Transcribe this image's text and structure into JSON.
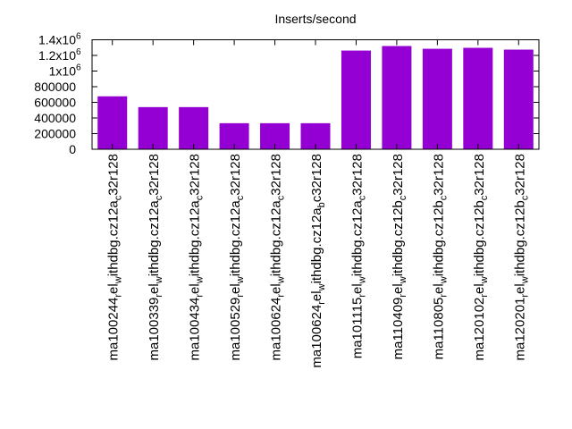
{
  "chart_data": {
    "type": "bar",
    "title": "Inserts/second",
    "xlabel": "",
    "ylabel": "",
    "ylim": [
      0,
      1400000
    ],
    "grid": false,
    "bar_color": "#9400d3",
    "yticks": [
      {
        "value": 0,
        "label": "0",
        "exp": ""
      },
      {
        "value": 200000,
        "label": "200000",
        "exp": ""
      },
      {
        "value": 400000,
        "label": "400000",
        "exp": ""
      },
      {
        "value": 600000,
        "label": "600000",
        "exp": ""
      },
      {
        "value": 800000,
        "label": "800000",
        "exp": ""
      },
      {
        "value": 1000000,
        "label": "1x10",
        "exp": "6"
      },
      {
        "value": 1200000,
        "label": "1.2x10",
        "exp": "6"
      },
      {
        "value": 1400000,
        "label": "1.4x10",
        "exp": "6"
      }
    ],
    "categories": [
      "ma100244_rel_withdbg.cz12a_c32r128",
      "ma100339_rel_withdbg.cz12a_c32r128",
      "ma100434_rel_withdbg.cz12a_c32r128",
      "ma100529_rel_withdbg.cz12a_c32r128",
      "ma100624_rel_withdbg.cz12a_c32r128",
      "ma100624_rel_withdbg.cz12a_bc32r128",
      "ma101115_rel_withdbg.cz12a_c32r128",
      "ma110409_rel_withdbg.cz12b_c32r128",
      "ma110805_rel_withdbg.cz12b_c32r128",
      "ma120102_rel_withdbg.cz12b_c32r128",
      "ma120201_rel_withdbg.cz12b_c32r128"
    ],
    "values": [
      677000,
      539000,
      539000,
      333000,
      333000,
      333000,
      1262000,
      1320000,
      1285000,
      1297000,
      1274000
    ]
  }
}
